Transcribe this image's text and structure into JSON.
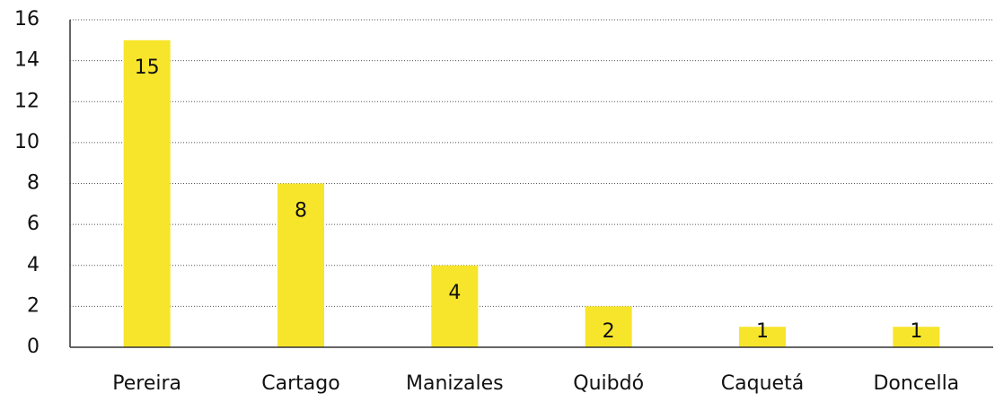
{
  "chart_data": {
    "type": "bar",
    "categories": [
      "Pereira",
      "Cartago",
      "Manizales",
      "Quibdó",
      "Caquetá",
      "Doncella"
    ],
    "values": [
      15,
      8,
      4,
      2,
      1,
      1
    ],
    "color": "#f7e52b",
    "ylim": [
      0,
      16
    ],
    "yticks": [
      0,
      2,
      4,
      6,
      8,
      10,
      12,
      14,
      16
    ],
    "grid": true
  }
}
